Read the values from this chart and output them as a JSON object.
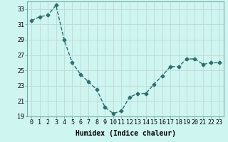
{
  "x": [
    0,
    1,
    2,
    3,
    4,
    5,
    6,
    7,
    8,
    9,
    10,
    11,
    12,
    13,
    14,
    15,
    16,
    17,
    18,
    19,
    20,
    21,
    22,
    23
  ],
  "y": [
    31.5,
    32.0,
    32.2,
    33.5,
    29.0,
    26.0,
    24.5,
    23.5,
    22.5,
    20.2,
    19.4,
    19.7,
    21.5,
    22.0,
    22.0,
    23.2,
    24.3,
    25.5,
    25.5,
    26.5,
    26.5,
    25.8,
    26.0,
    26.0
  ],
  "line_color": "#2e6e6e",
  "marker": "D",
  "markersize": 2.5,
  "linewidth": 1.0,
  "bg_color": "#cef5f0",
  "grid_color": "#c0d8d5",
  "xlabel": "Humidex (Indice chaleur)",
  "ylim": [
    19,
    34
  ],
  "xlim": [
    -0.5,
    23.5
  ],
  "yticks": [
    19,
    21,
    23,
    25,
    27,
    29,
    31,
    33
  ],
  "xticks": [
    0,
    1,
    2,
    3,
    4,
    5,
    6,
    7,
    8,
    9,
    10,
    11,
    12,
    13,
    14,
    15,
    16,
    17,
    18,
    19,
    20,
    21,
    22,
    23
  ],
  "xlabel_fontsize": 7.0,
  "tick_fontsize": 6.0
}
